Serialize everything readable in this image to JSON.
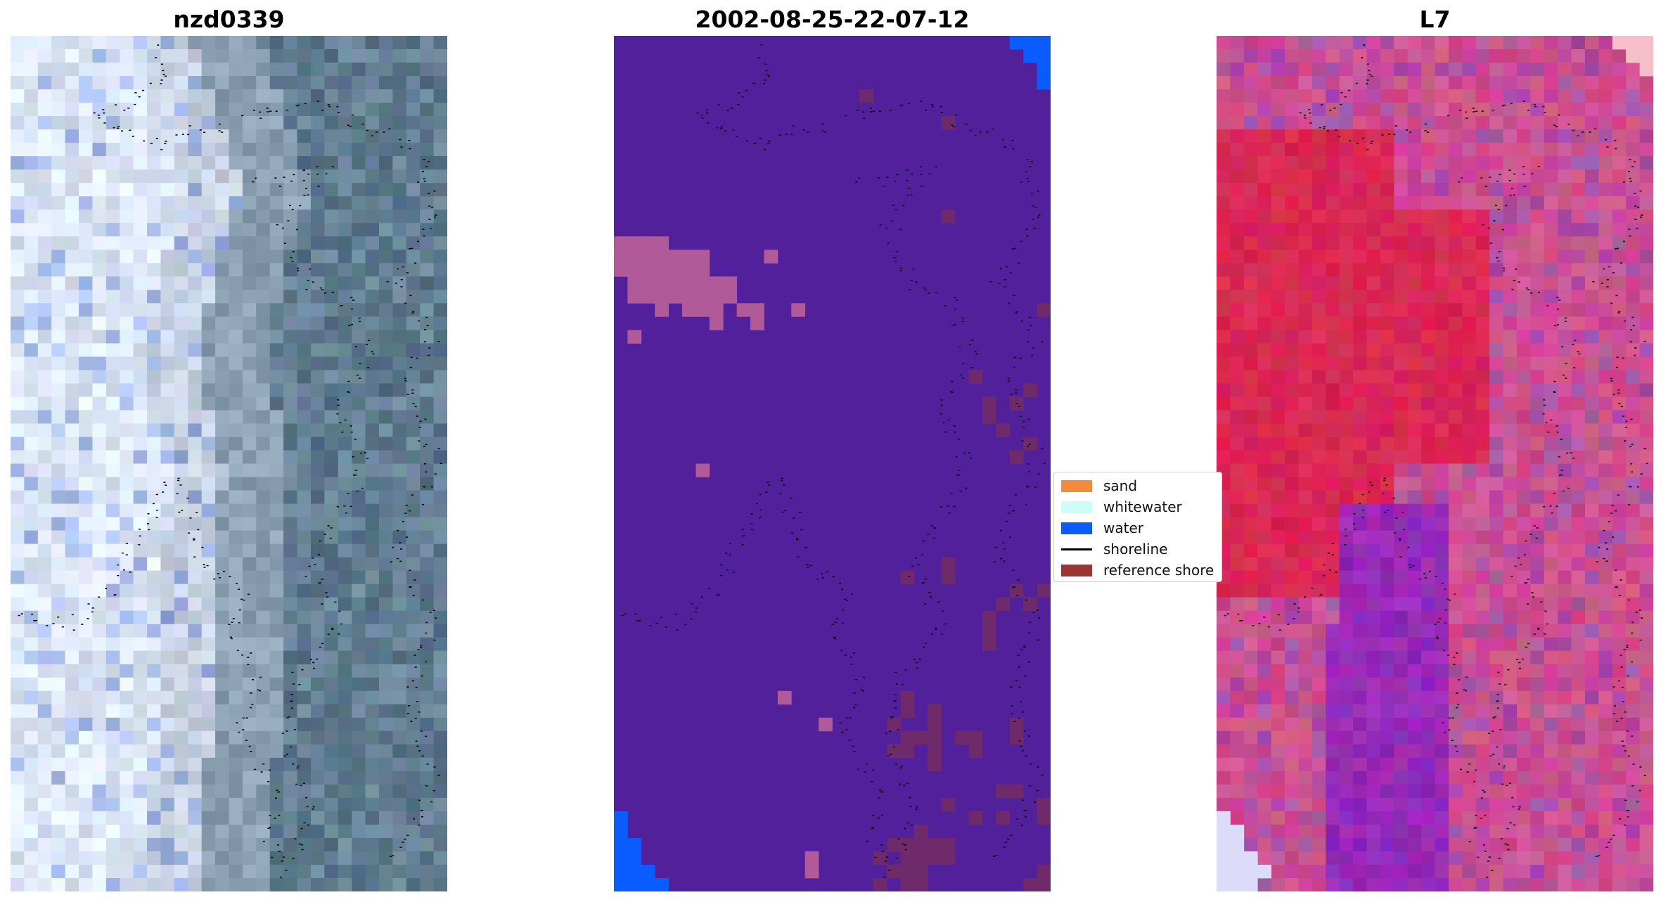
{
  "titles": {
    "left": "nzd0339",
    "middle": "2002-08-25-22-07-12",
    "right": "L7"
  },
  "legend": {
    "items": [
      {
        "label": "sand",
        "kind": "patch",
        "color": "#f28c3c"
      },
      {
        "label": "whitewater",
        "kind": "patch",
        "color": "#ccfff7"
      },
      {
        "label": "water",
        "kind": "patch",
        "color": "#0a5cff"
      },
      {
        "label": "shoreline",
        "kind": "line",
        "color": "#000000"
      },
      {
        "label": "reference shore",
        "kind": "patch",
        "color": "#9c3434"
      }
    ]
  },
  "colors": {
    "background_class": "#52209a",
    "whitewater_blend": "#b05a9a",
    "reference_blend": "#6e2a6a",
    "water": "#0a5cff",
    "shoreline_dots": "#000000"
  }
}
